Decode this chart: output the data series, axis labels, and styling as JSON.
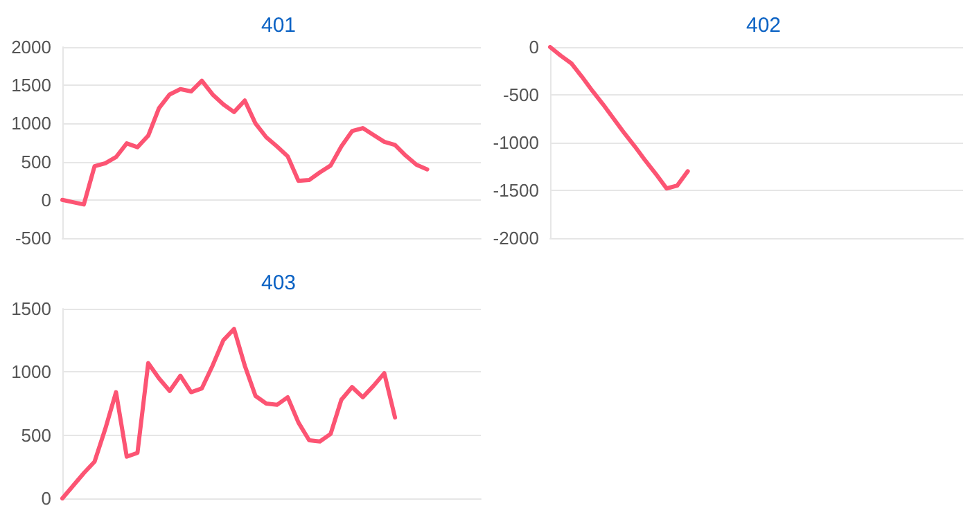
{
  "chart_data": [
    {
      "type": "line",
      "title": "401",
      "categories": [
        null,
        null,
        null,
        null,
        null,
        null,
        null,
        null,
        null,
        null,
        null,
        null,
        null,
        null,
        null,
        null,
        null,
        null,
        null,
        null,
        null,
        null,
        null,
        null,
        null,
        null,
        null,
        null,
        null,
        null,
        null,
        null,
        null,
        null,
        null,
        null,
        null,
        null,
        null,
        null
      ],
      "series": [
        {
          "color": "#fc5473",
          "values": [
            0,
            -30,
            -60,
            440,
            480,
            560,
            740,
            690,
            840,
            1200,
            1380,
            1450,
            1420,
            1560,
            1380,
            1250,
            1150,
            1300,
            1000,
            820,
            700,
            570,
            250,
            260,
            360,
            450,
            700,
            900,
            940,
            850,
            760,
            720,
            580,
            460,
            400,
            null,
            null,
            null,
            null,
            null
          ]
        }
      ],
      "ylim": [
        -500,
        2000
      ],
      "yticks": [
        -500,
        0,
        500,
        1000,
        1500,
        2000
      ],
      "grid": "y",
      "line_style": "solid",
      "tick_labels": "y"
    },
    {
      "type": "line",
      "title": "402",
      "categories": [
        null,
        null,
        null,
        null,
        null,
        null,
        null,
        null,
        null,
        null,
        null,
        null,
        null,
        null,
        null,
        null,
        null,
        null,
        null,
        null,
        null,
        null,
        null,
        null,
        null,
        null,
        null,
        null,
        null,
        null,
        null,
        null,
        null,
        null,
        null,
        null,
        null,
        null,
        null,
        null
      ],
      "series": [
        {
          "color": "#fc5473",
          "values": [
            0,
            -90,
            -170,
            -310,
            -460,
            -600,
            -750,
            -900,
            -1040,
            -1190,
            -1330,
            -1480,
            -1450,
            -1300,
            null,
            null,
            null,
            null,
            null,
            null,
            null,
            null,
            null,
            null,
            null,
            null,
            null,
            null,
            null,
            null,
            null,
            null,
            null,
            null,
            null,
            null,
            null,
            null,
            null,
            null
          ]
        }
      ],
      "ylim": [
        -2000,
        0
      ],
      "yticks": [
        -2000,
        -1500,
        -1000,
        -500,
        0
      ],
      "grid": "y",
      "line_style": "solid",
      "tick_labels": "y"
    },
    {
      "type": "line",
      "title": "403",
      "categories": [
        null,
        null,
        null,
        null,
        null,
        null,
        null,
        null,
        null,
        null,
        null,
        null,
        null,
        null,
        null,
        null,
        null,
        null,
        null,
        null,
        null,
        null,
        null,
        null,
        null,
        null,
        null,
        null,
        null,
        null,
        null,
        null,
        null,
        null,
        null,
        null,
        null,
        null,
        null,
        null
      ],
      "series": [
        {
          "color": "#fc5473",
          "values": [
            0,
            100,
            200,
            290,
            550,
            840,
            330,
            360,
            1070,
            950,
            850,
            970,
            840,
            870,
            1050,
            1250,
            1340,
            1050,
            810,
            750,
            740,
            800,
            600,
            460,
            450,
            510,
            780,
            880,
            800,
            890,
            990,
            640,
            null,
            null,
            null,
            null,
            null,
            null,
            null,
            null
          ]
        }
      ],
      "ylim": [
        0,
        1500
      ],
      "yticks": [
        0,
        500,
        1000,
        1500
      ],
      "grid": "y",
      "line_style": "solid",
      "tick_labels": "y"
    }
  ]
}
